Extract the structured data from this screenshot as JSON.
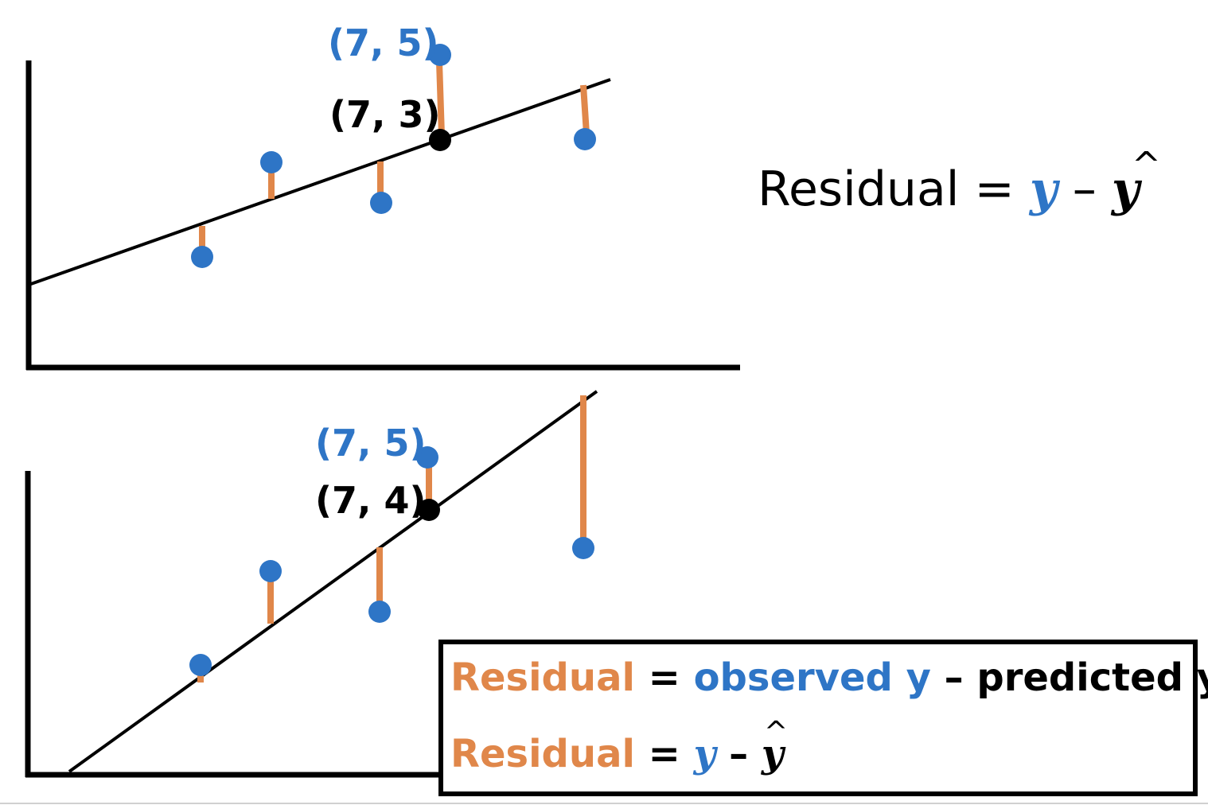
{
  "colors": {
    "observed": "#2e75c6",
    "residual": "#e0874a",
    "line": "#000000",
    "predicted": "#000000"
  },
  "top_plot": {
    "observed_label": "(7, 5)",
    "predicted_label": "(7, 3)"
  },
  "bottom_plot": {
    "observed_label": "(7, 5)",
    "predicted_label": "(7, 4)"
  },
  "formula": {
    "prefix": "Residual = ",
    "y": "y",
    "minus": " – ",
    "yhat": "y",
    "hat": "^"
  },
  "box": {
    "line1": {
      "residual": "Residual",
      "equals": " = ",
      "observed": "observed y",
      "minus": " – ",
      "predicted": "predicted y"
    },
    "line2": {
      "residual": "Residual",
      "equals": " = ",
      "y": "y",
      "minus": " – ",
      "yhat": "y",
      "hat": "^"
    }
  }
}
